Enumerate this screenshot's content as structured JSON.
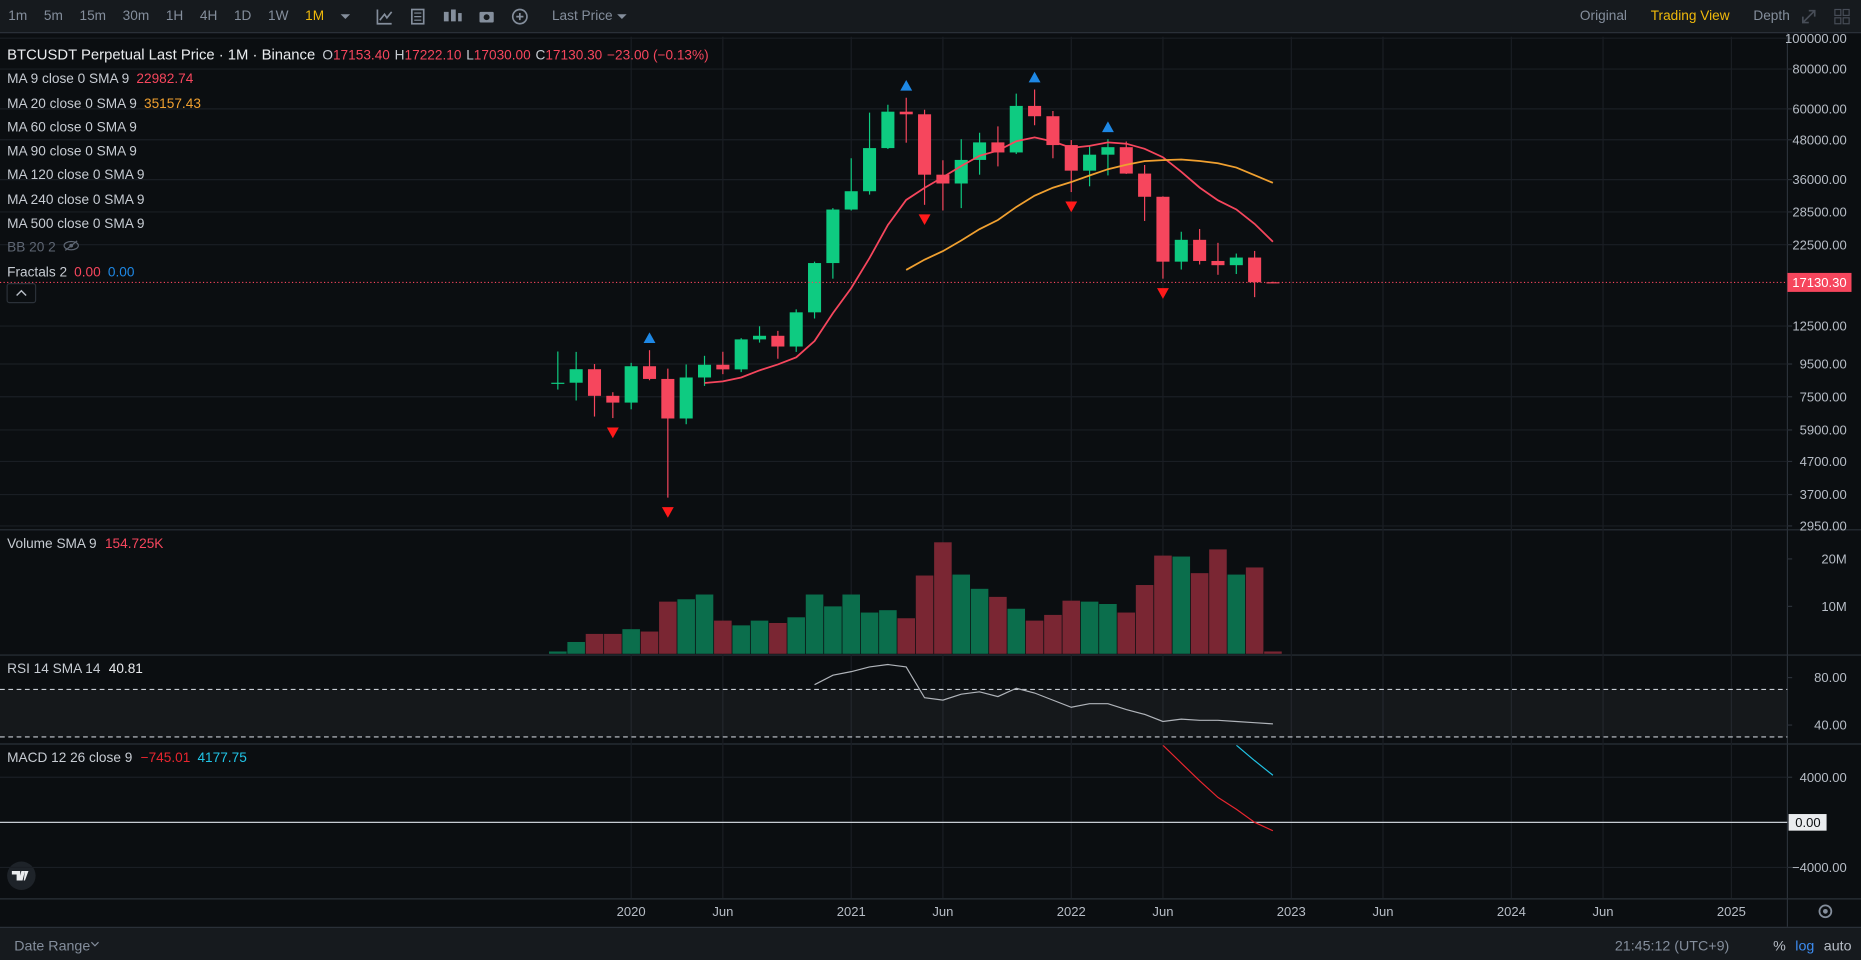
{
  "toolbar": {
    "intervals": [
      "1m",
      "5m",
      "15m",
      "30m",
      "1H",
      "4H",
      "1D",
      "1W",
      "1M"
    ],
    "active": 8,
    "price_source": "Last Price",
    "views": [
      "Original",
      "Trading View",
      "Depth"
    ],
    "active_view": 1
  },
  "legend": {
    "symbol": "BTCUSDT Perpetual Last Price · 1M · Binance",
    "ohlc": [
      {
        "key": "O",
        "value": "17153.40"
      },
      {
        "key": "H",
        "value": "17222.10"
      },
      {
        "key": "L",
        "value": "17030.00"
      },
      {
        "key": "C",
        "value": "17130.30"
      }
    ],
    "change": "−23.00 (−0.13%)",
    "color": "#f6465d"
  },
  "indicators": [
    {
      "name": "MA 9 close 0 SMA 9",
      "value": "22982.74",
      "color": "#f6465d"
    },
    {
      "name": "MA 20 close 0 SMA 9",
      "value": "35157.43",
      "color": "#f0a030"
    },
    {
      "name": "MA 60 close 0 SMA 9"
    },
    {
      "name": "MA 90 close 0 SMA 9"
    },
    {
      "name": "MA 120 close 0 SMA 9"
    },
    {
      "name": "MA 240 close 0 SMA 9"
    },
    {
      "name": "MA 500 close 0 SMA 9"
    },
    {
      "name": "BB 20 2",
      "hidden": true
    },
    {
      "name": "Fractals 2",
      "values": [
        {
          "text": "0.00",
          "color": "#f6465d"
        },
        {
          "text": "0.00",
          "color": "#1e88e5"
        }
      ]
    }
  ],
  "chart_data": [
    {
      "type": "candlestick",
      "up_color": "#0ecb81",
      "down_color": "#f6465d",
      "candles": {
        "open": [
          8250,
          8300,
          9150,
          7550,
          7190,
          9350,
          8530,
          6410,
          8620,
          9450,
          9140,
          11350,
          11650,
          10780,
          13800,
          19700,
          29000,
          33100,
          45200,
          58800,
          57700,
          37300,
          35000,
          41500,
          47100,
          43800,
          61300,
          56900,
          46200,
          38400,
          43100,
          45500,
          37600,
          31800,
          19900,
          23300,
          20000,
          19400,
          20500,
          17153.4
        ],
        "high": [
          10400,
          10370,
          9500,
          7750,
          9580,
          10500,
          9190,
          9470,
          10080,
          10380,
          11450,
          12480,
          12070,
          14100,
          19900,
          29300,
          42000,
          58400,
          61800,
          65000,
          59600,
          41400,
          48200,
          50500,
          52900,
          67000,
          69000,
          59100,
          47900,
          45800,
          48200,
          47400,
          40000,
          31900,
          24700,
          25200,
          22800,
          21100,
          21500,
          17222.1
        ],
        "low": [
          7900,
          7300,
          6500,
          6430,
          6850,
          8450,
          3620,
          6150,
          8110,
          8830,
          8960,
          11090,
          9870,
          10370,
          13200,
          17600,
          28800,
          32300,
          44900,
          47000,
          30000,
          28800,
          29300,
          37300,
          39600,
          43300,
          53300,
          42000,
          32900,
          34300,
          37100,
          37500,
          26700,
          17600,
          18800,
          19500,
          18100,
          18200,
          15400,
          17030
        ],
        "close": [
          8300,
          9150,
          7550,
          7190,
          9350,
          8530,
          6410,
          8620,
          9450,
          9140,
          11350,
          11650,
          10780,
          13800,
          19700,
          29000,
          33100,
          45200,
          58800,
          57700,
          37300,
          35000,
          41500,
          47100,
          43800,
          61300,
          56900,
          46200,
          38400,
          43100,
          45500,
          37600,
          31800,
          19900,
          23300,
          20000,
          19400,
          20500,
          17150,
          17130.3
        ]
      },
      "series": [
        {
          "color": "#f6465d",
          "values": [
            null,
            null,
            null,
            null,
            null,
            null,
            null,
            null,
            8283,
            8377,
            8621,
            9077,
            9476,
            9970,
            11211,
            13721,
            16441,
            20413,
            25931,
            31081,
            33931,
            36622,
            39700,
            42744,
            44389,
            47522,
            48822,
            47422,
            45278,
            45922,
            47089,
            46656,
            44956,
            42300,
            38078,
            33978,
            31000,
            29011,
            26128,
            22983
          ]
        },
        {
          "color": "#f0a030",
          "values": [
            null,
            null,
            null,
            null,
            null,
            null,
            null,
            null,
            null,
            null,
            null,
            null,
            null,
            null,
            null,
            null,
            null,
            null,
            null,
            18739,
            20189,
            21481,
            23179,
            25174,
            26897,
            29535,
            32060,
            33939,
            35386,
            37084,
            38792,
            40089,
            41140,
            41445,
            41625,
            41175,
            40490,
            39255,
            37173,
            35157
          ]
        }
      ],
      "fractals": {
        "up": [
          5,
          19,
          26,
          30
        ],
        "down": [
          3,
          6,
          20,
          28,
          33
        ],
        "up_color": "#1e88e5",
        "down_color": "#ff1a1a"
      },
      "log": true,
      "grid": true,
      "ylim": [
        2880,
        101000
      ],
      "yticks": [
        {
          "value": 100000,
          "label": "100000.00"
        },
        {
          "value": 80000,
          "label": "80000.00"
        },
        {
          "value": 60000,
          "label": "60000.00"
        },
        {
          "value": 48000,
          "label": "48000.00"
        },
        {
          "value": 36000,
          "label": "36000.00"
        },
        {
          "value": 28500,
          "label": "28500.00"
        },
        {
          "value": 22500,
          "label": "22500.00"
        },
        {
          "value": 12500,
          "label": "12500.00"
        },
        {
          "value": 9500,
          "label": "9500.00"
        },
        {
          "value": 7500,
          "label": "7500.00"
        },
        {
          "value": 5900,
          "label": "5900.00"
        },
        {
          "value": 4700,
          "label": "4700.00"
        },
        {
          "value": 3700,
          "label": "3700.00"
        },
        {
          "value": 2950,
          "label": "2950.00"
        }
      ],
      "last_price_label": "17130.30",
      "xticks": [
        {
          "value": 4,
          "label": "2020"
        },
        {
          "value": 9,
          "label": "Jun"
        },
        {
          "value": 16,
          "label": "2021"
        },
        {
          "value": 21,
          "label": "Jun"
        },
        {
          "value": 28,
          "label": "2022"
        },
        {
          "value": 33,
          "label": "Jun"
        },
        {
          "value": 40,
          "label": "2023"
        },
        {
          "value": 45,
          "label": "Jun"
        },
        {
          "value": 52,
          "label": "2024"
        },
        {
          "value": 57,
          "label": "Jun"
        },
        {
          "value": 64,
          "label": "2025"
        }
      ]
    },
    {
      "type": "bar",
      "title": "Volume SMA 9",
      "value_label": "154.725K",
      "value_color": "#f6465d",
      "up_color": "#0b6e4c",
      "down_color": "#7a2633",
      "values": [
        500000,
        2500000,
        4200000,
        4200000,
        5200000,
        4700000,
        11000000,
        11500000,
        12500000,
        7000000,
        6000000,
        7000000,
        6500000,
        7700000,
        12500000,
        10000000,
        12500000,
        8700000,
        9200000,
        7500000,
        16500000,
        23500000,
        16700000,
        13700000,
        12000000,
        9500000,
        7000000,
        8200000,
        11200000,
        11000000,
        10500000,
        8700000,
        14500000,
        20700000,
        20500000,
        17000000,
        22000000,
        16700000,
        18200000,
        500000
      ],
      "grid": false,
      "ylim": [
        0,
        26000000
      ],
      "yticks": [
        {
          "value": 20000000,
          "label": "20M"
        },
        {
          "value": 10000000,
          "label": "10M"
        }
      ]
    },
    {
      "type": "line",
      "title": "RSI 14 SMA 14",
      "value_label": "40.81",
      "value_color": "#eaecef",
      "series": [
        {
          "color": "#b0b4ba",
          "values": [
            null,
            null,
            null,
            null,
            null,
            null,
            null,
            null,
            null,
            null,
            null,
            null,
            null,
            null,
            74,
            82,
            85,
            89,
            91,
            89,
            63,
            61,
            66,
            68,
            64,
            71,
            67,
            61,
            55,
            58,
            58,
            53,
            49,
            43,
            45,
            44,
            44,
            43,
            42,
            41
          ]
        }
      ],
      "bands": [
        30,
        70
      ],
      "grid": false,
      "ylim": [
        25,
        98
      ],
      "yticks": [
        {
          "value": 80,
          "label": "80.00"
        },
        {
          "value": 40,
          "label": "40.00"
        }
      ]
    },
    {
      "type": "line",
      "title": "MACD 12 26 close 9",
      "series": [
        {
          "color": "#e8262f",
          "value_label": "−745.01",
          "values": [
            null,
            null,
            null,
            null,
            null,
            null,
            null,
            null,
            null,
            null,
            null,
            null,
            null,
            null,
            null,
            null,
            null,
            null,
            null,
            null,
            null,
            null,
            null,
            null,
            null,
            null,
            null,
            null,
            null,
            null,
            null,
            null,
            null,
            6840,
            5260,
            3680,
            2210,
            1160,
            0,
            -745
          ]
        },
        {
          "color": "#21c4e6",
          "value_label": "4177.75",
          "values": [
            null,
            null,
            null,
            null,
            null,
            null,
            null,
            null,
            null,
            null,
            null,
            null,
            null,
            null,
            null,
            null,
            null,
            null,
            null,
            null,
            null,
            null,
            null,
            null,
            null,
            null,
            null,
            null,
            null,
            null,
            null,
            null,
            null,
            null,
            null,
            null,
            null,
            6840,
            5470,
            4178
          ]
        }
      ],
      "zero_line": true,
      "grid": true,
      "ylim": [
        -6737,
        6842
      ],
      "yticks": [
        {
          "value": 4000,
          "label": "4000.00"
        },
        {
          "value": 0,
          "label": "0.00"
        },
        {
          "value": -4000,
          "label": "−4000.00"
        }
      ]
    }
  ],
  "footer": {
    "date_range": "Date Range",
    "time": "21:45:12 (UTC+9)",
    "scale_options": [
      "%",
      "log",
      "auto"
    ],
    "active_scale": 1
  }
}
